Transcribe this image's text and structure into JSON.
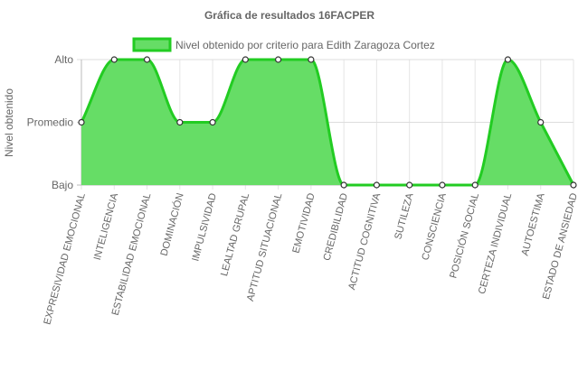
{
  "chart_data": {
    "type": "area",
    "title": "Gráfica de resultados 16FACPER",
    "ylabel": "Nivel obtenido",
    "xlabel": "",
    "y_levels": [
      "Bajo",
      "Promedio",
      "Alto"
    ],
    "ylim": [
      0,
      2
    ],
    "grid": true,
    "legend_position": "top",
    "categories": [
      "EXPRESIVIDAD EMOCIONAL",
      "INTELIGENCIA",
      "ESTABILIDAD EMOCIONAL",
      "DOMINACIÓN",
      "IMPULSIVIDAD",
      "LEALTAD GRUPAL",
      "APTITUD SITUACIONAL",
      "EMOTIVIDAD",
      "CREDIBILIDAD",
      "ACTITUD COGNITIVA",
      "SUTILEZA",
      "CONSCIENCIA",
      "POSICIÓN SOCIAL",
      "CERTEZA INDIVIDUAL",
      "AUTOESTIMA",
      "ESTADO DE ANSIEDAD"
    ],
    "series": [
      {
        "name": "Nivel obtenido por criterio para Edith Zaragoza Cortez",
        "values": [
          1,
          2,
          2,
          1,
          1,
          2,
          2,
          2,
          0,
          0,
          0,
          0,
          0,
          2,
          1,
          0
        ],
        "fill_color": "#66dd66",
        "line_color": "#22cc22"
      }
    ]
  }
}
